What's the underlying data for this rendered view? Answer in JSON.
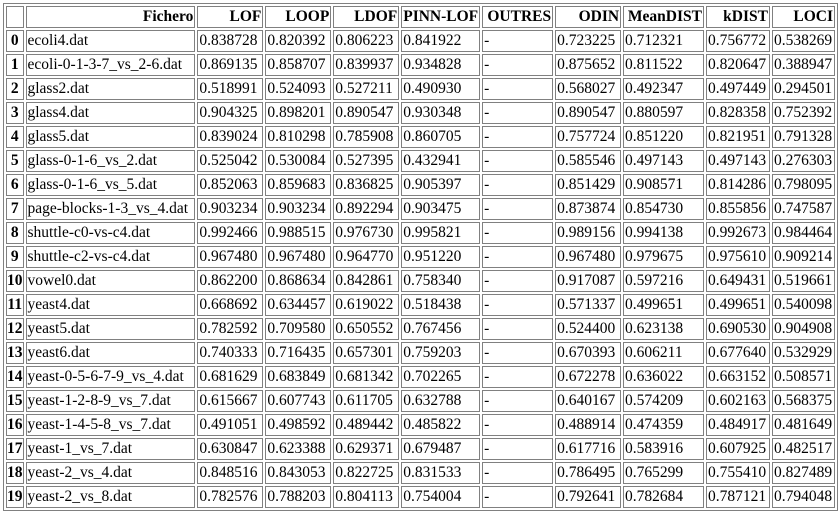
{
  "table": {
    "columns": [
      "",
      "Fichero",
      "LOF",
      "LOOP",
      "LDOF",
      "PINN-LOF",
      "OUTRES",
      "ODIN",
      "MeanDIST",
      "kDIST",
      "LOCI"
    ],
    "rows": [
      [
        "0",
        "ecoli4.dat",
        "0.838728",
        "0.820392",
        "0.806223",
        "0.841922",
        "-",
        "0.723225",
        "0.712321",
        "0.756772",
        "0.538269"
      ],
      [
        "1",
        "ecoli-0-1-3-7_vs_2-6.dat",
        "0.869135",
        "0.858707",
        "0.839937",
        "0.934828",
        "-",
        "0.875652",
        "0.811522",
        "0.820647",
        "0.388947"
      ],
      [
        "2",
        "glass2.dat",
        "0.518991",
        "0.524093",
        "0.527211",
        "0.490930",
        "-",
        "0.568027",
        "0.492347",
        "0.497449",
        "0.294501"
      ],
      [
        "3",
        "glass4.dat",
        "0.904325",
        "0.898201",
        "0.890547",
        "0.930348",
        "-",
        "0.890547",
        "0.880597",
        "0.828358",
        "0.752392"
      ],
      [
        "4",
        "glass5.dat",
        "0.839024",
        "0.810298",
        "0.785908",
        "0.860705",
        "-",
        "0.757724",
        "0.851220",
        "0.821951",
        "0.791328"
      ],
      [
        "5",
        "glass-0-1-6_vs_2.dat",
        "0.525042",
        "0.530084",
        "0.527395",
        "0.432941",
        "-",
        "0.585546",
        "0.497143",
        "0.497143",
        "0.276303"
      ],
      [
        "6",
        "glass-0-1-6_vs_5.dat",
        "0.852063",
        "0.859683",
        "0.836825",
        "0.905397",
        "-",
        "0.851429",
        "0.908571",
        "0.814286",
        "0.798095"
      ],
      [
        "7",
        "page-blocks-1-3_vs_4.dat",
        "0.903234",
        "0.903234",
        "0.892294",
        "0.903475",
        "-",
        "0.873874",
        "0.854730",
        "0.855856",
        "0.747587"
      ],
      [
        "8",
        "shuttle-c0-vs-c4.dat",
        "0.992466",
        "0.988515",
        "0.976730",
        "0.995821",
        "-",
        "0.989156",
        "0.994138",
        "0.992673",
        "0.984464"
      ],
      [
        "9",
        "shuttle-c2-vs-c4.dat",
        "0.967480",
        "0.967480",
        "0.964770",
        "0.951220",
        "-",
        "0.967480",
        "0.979675",
        "0.975610",
        "0.909214"
      ],
      [
        "10",
        "vowel0.dat",
        "0.862200",
        "0.868634",
        "0.842861",
        "0.758340",
        "-",
        "0.917087",
        "0.597216",
        "0.649431",
        "0.519661"
      ],
      [
        "11",
        "yeast4.dat",
        "0.668692",
        "0.634457",
        "0.619022",
        "0.518438",
        "-",
        "0.571337",
        "0.499651",
        "0.499651",
        "0.540098"
      ],
      [
        "12",
        "yeast5.dat",
        "0.782592",
        "0.709580",
        "0.650552",
        "0.767456",
        "-",
        "0.524400",
        "0.623138",
        "0.690530",
        "0.904908"
      ],
      [
        "13",
        "yeast6.dat",
        "0.740333",
        "0.716435",
        "0.657301",
        "0.759203",
        "-",
        "0.670393",
        "0.606211",
        "0.677640",
        "0.532929"
      ],
      [
        "14",
        "yeast-0-5-6-7-9_vs_4.dat",
        "0.681629",
        "0.683849",
        "0.681342",
        "0.702265",
        "-",
        "0.672278",
        "0.636022",
        "0.663152",
        "0.508571"
      ],
      [
        "15",
        "yeast-1-2-8-9_vs_7.dat",
        "0.615667",
        "0.607743",
        "0.611705",
        "0.632788",
        "-",
        "0.640167",
        "0.574209",
        "0.602163",
        "0.568375"
      ],
      [
        "16",
        "yeast-1-4-5-8_vs_7.dat",
        "0.491051",
        "0.498592",
        "0.489442",
        "0.485822",
        "-",
        "0.488914",
        "0.474359",
        "0.484917",
        "0.481649"
      ],
      [
        "17",
        "yeast-1_vs_7.dat",
        "0.630847",
        "0.623388",
        "0.629371",
        "0.679487",
        "-",
        "0.617716",
        "0.583916",
        "0.607925",
        "0.482517"
      ],
      [
        "18",
        "yeast-2_vs_4.dat",
        "0.848516",
        "0.843053",
        "0.822725",
        "0.831533",
        "-",
        "0.786495",
        "0.765299",
        "0.755410",
        "0.827489"
      ],
      [
        "19",
        "yeast-2_vs_8.dat",
        "0.782576",
        "0.788203",
        "0.804113",
        "0.754004",
        "-",
        "0.792641",
        "0.782684",
        "0.787121",
        "0.794048"
      ]
    ]
  }
}
